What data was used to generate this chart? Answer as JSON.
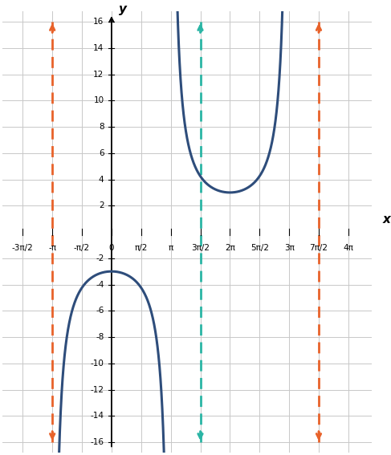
{
  "xlim": [
    -5.8,
    13.8
  ],
  "ylim": [
    -16,
    16
  ],
  "yticks": [
    -16,
    -14,
    -12,
    -10,
    -8,
    -6,
    -4,
    -2,
    2,
    4,
    6,
    8,
    10,
    12,
    14,
    16
  ],
  "xtick_positions": [
    -4.71238898,
    -3.14159265,
    -1.57079633,
    0,
    1.57079633,
    3.14159265,
    4.71238898,
    6.28318531,
    7.85398163,
    9.42477796,
    10.99557429,
    12.56637061
  ],
  "xtick_labels": [
    "-3π/2",
    "-π",
    "-π/2",
    "0",
    "π/2",
    "π",
    "3π/2",
    "2π",
    "5π/2",
    "3π",
    "7π/2",
    "4π"
  ],
  "asymptote_orange": [
    -3.14159265,
    10.99557429
  ],
  "asymptote_teal": [
    4.71238898
  ],
  "curve_color": "#2e4d7b",
  "asymptote_orange_color": "#e8622a",
  "asymptote_teal_color": "#2ab5a5",
  "amplitude": 3,
  "background_color": "#ffffff",
  "grid_color": "#c8c8c8",
  "xlabel": "x",
  "ylabel": "y"
}
